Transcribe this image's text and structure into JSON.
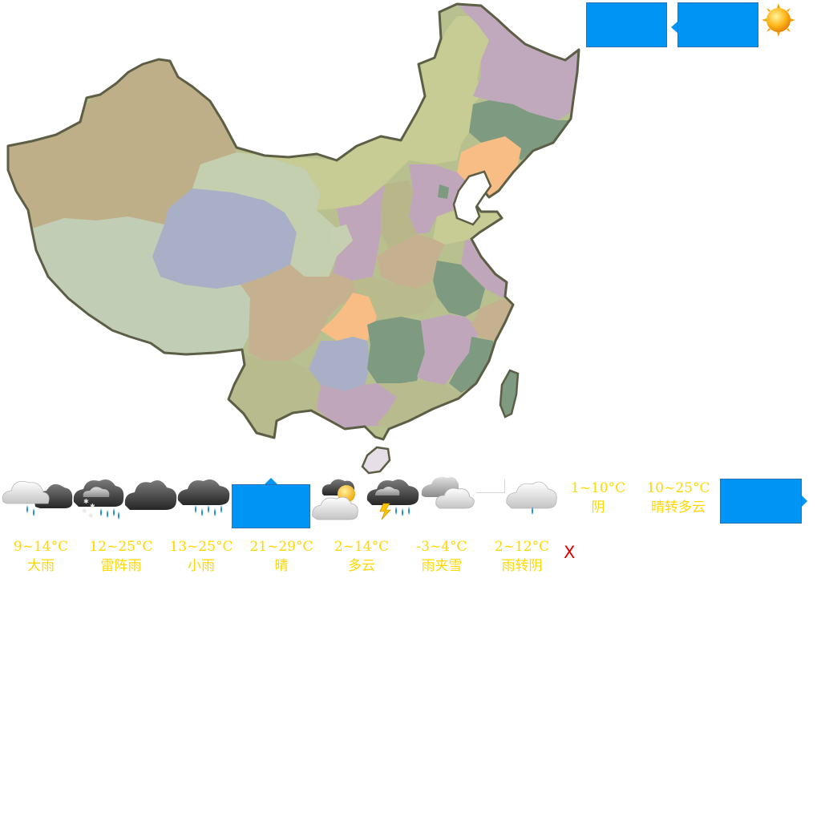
{
  "map": {
    "regions": [
      "xinjiang",
      "tibet",
      "qinghai",
      "gansu",
      "inner-mongolia",
      "heilongjiang",
      "jilin",
      "liaoning",
      "hebei",
      "beijing",
      "shandong",
      "shanxi",
      "shaanxi",
      "ningxia",
      "henan",
      "jiangsu",
      "anhui",
      "hubei",
      "sichuan",
      "chongqing",
      "guizhou",
      "yunnan",
      "hunan",
      "jiangxi",
      "zhejiang",
      "fujian",
      "guangxi",
      "guangdong",
      "hainan",
      "taiwan"
    ]
  },
  "top_controls": {
    "left_box_icon": "popup-box",
    "right_box_icon": "callout-box",
    "sun_icon": "sun-icon"
  },
  "forecast": [
    {
      "temp": "9~14°C",
      "cond": "大雨",
      "icon": "heavy-rain-icon"
    },
    {
      "temp": "12~25°C",
      "cond": "雷阵雨",
      "icon": "thunder-shower-icon"
    },
    {
      "temp": "13~25°C",
      "cond": "小雨",
      "icon": "light-rain-icon"
    },
    {
      "temp": "21~29°C",
      "cond": "晴",
      "icon": "sunny-icon"
    },
    {
      "temp": "2~14°C",
      "cond": "多云",
      "icon": "cloudy-icon"
    },
    {
      "temp": "-3~4°C",
      "cond": "雨夹雪",
      "icon": "sleet-icon"
    },
    {
      "temp": "2~12°C",
      "cond": "雨转阴",
      "icon": "rain-to-overcast-icon"
    },
    {
      "temp": "1~10°C",
      "cond": "阴",
      "icon": "overcast-icon"
    },
    {
      "temp": "10~25°C",
      "cond": "晴转多云",
      "icon": "sunny-to-cloudy-icon"
    }
  ],
  "close_label": "X",
  "colors": {
    "label_yellow": "#ffd800",
    "popup_blue": "#0095f4",
    "close_red": "#e00000"
  }
}
